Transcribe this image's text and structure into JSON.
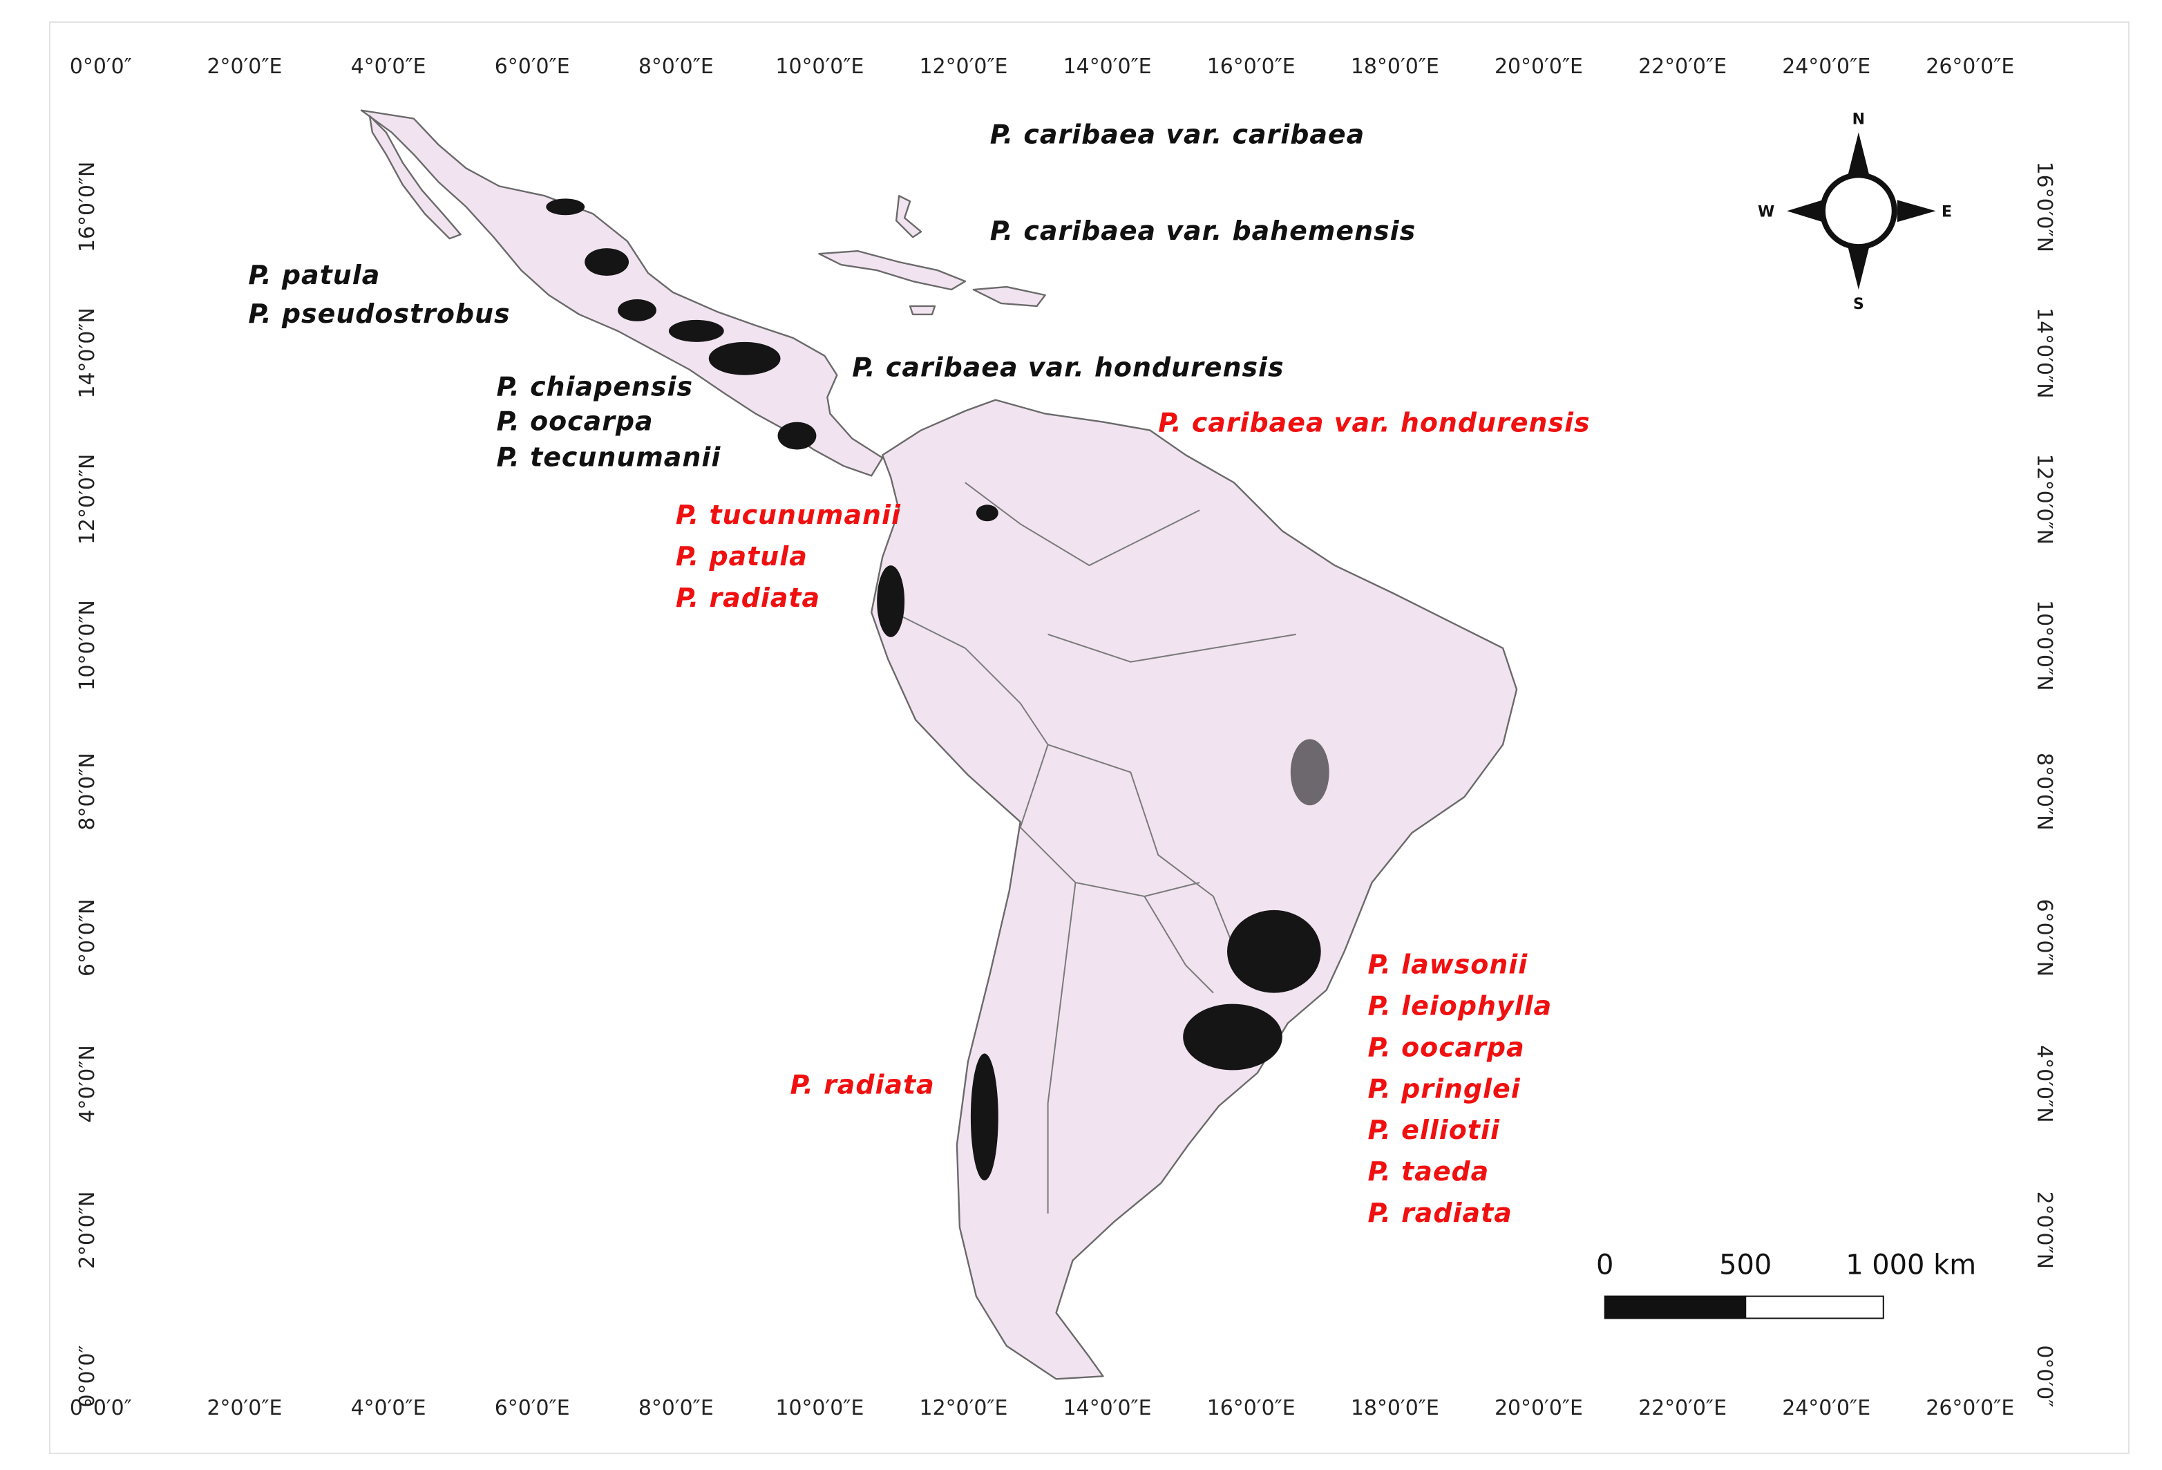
{
  "map": {
    "top_labels": [
      "0°0′0″",
      "2°0′0″E",
      "4°0′0″E",
      "6°0′0″E",
      "8°0′0″E",
      "10°0′0″E",
      "12°0′0″E",
      "14°0′0″E",
      "16°0′0″E",
      "18°0′0″E",
      "20°0′0″E",
      "22°0′0″E",
      "24°0′0″E",
      "26°0′0″E"
    ],
    "bottom_labels": [
      "0°0′0″",
      "2°0′0″E",
      "4°0′0″E",
      "6°0′0″E",
      "8°0′0″E",
      "10°0′0″E",
      "12°0′0″E",
      "14°0′0″E",
      "16°0′0″E",
      "18°0′0″E",
      "20°0′0″E",
      "22°0′0″E",
      "24°0′0″E",
      "26°0′0″E"
    ],
    "left_labels": [
      "16°0′0″N",
      "14°0′0″N",
      "12°0′0″N",
      "10°0′0″N",
      "8°0′0″N",
      "6°0′0″N",
      "4°0′0″N",
      "2°0′0″N",
      "0°0′0″"
    ],
    "right_labels": [
      "16°0′0″N",
      "14°0′0″N",
      "12°0′0″N",
      "10°0′0″N",
      "8°0′0″N",
      "6°0′0″N",
      "4°0′0″N",
      "2°0′0″N",
      "0°0′0″"
    ],
    "species_black": [
      "P. caribaea var. caribaea",
      "P. caribaea var. bahemensis",
      "P. patula",
      "P. pseudostrobus",
      "P. caribaea var. hondurensis",
      "P. chiapensis",
      "P. oocarpa",
      "P. tecunumanii"
    ],
    "species_red": [
      "P. caribaea var. hondurensis",
      "P. tucunumanii",
      "P. patula",
      "P. radiata",
      "P. radiata",
      "P. lawsonii",
      "P. leiophylla",
      "P. oocarpa",
      "P. pringlei",
      "P. elliotii",
      "P. taeda",
      "P. radiata"
    ],
    "compass": {
      "n": "N",
      "e": "E",
      "s": "S",
      "w": "W"
    },
    "scale_bar": {
      "labels": [
        "0",
        "500",
        "1 000 km"
      ]
    }
  }
}
